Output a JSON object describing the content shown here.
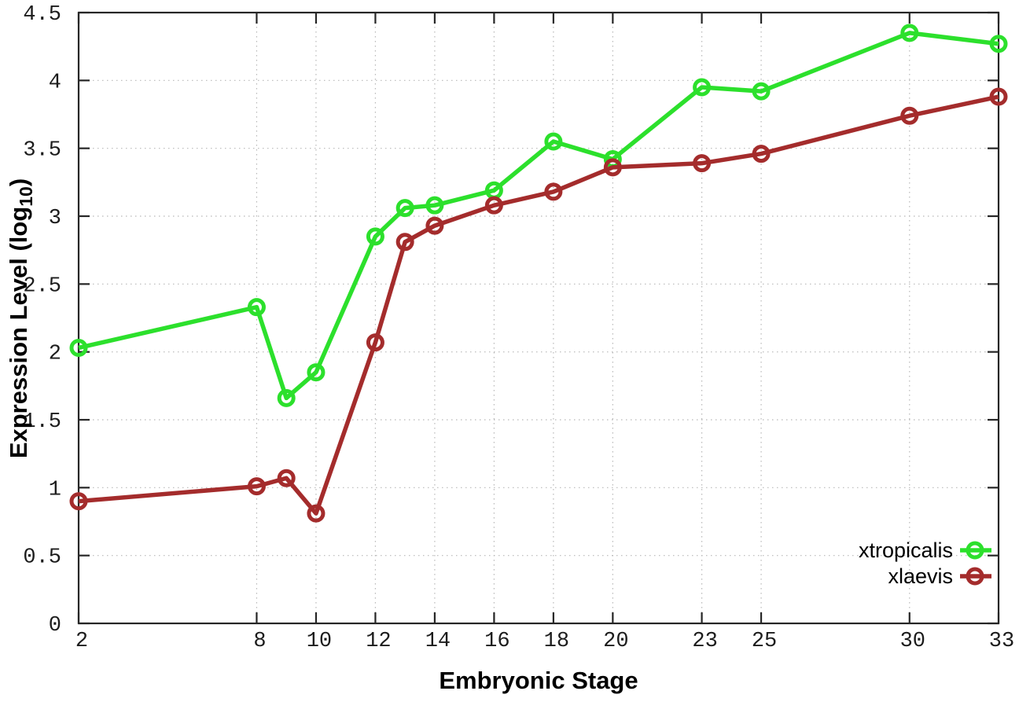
{
  "chart_data": {
    "type": "line",
    "title": "",
    "xlabel": "Embryonic Stage",
    "ylabel": "Expression Level (log10)",
    "ylabel_parts": {
      "main": "Expression Level (log",
      "sub": "10",
      "end": ")"
    },
    "xlim": [
      2,
      33
    ],
    "ylim": [
      0,
      4.5
    ],
    "x_ticks": [
      2,
      8,
      10,
      12,
      14,
      16,
      18,
      20,
      23,
      25,
      30,
      33
    ],
    "y_ticks": [
      0,
      0.5,
      1,
      1.5,
      2,
      2.5,
      3,
      3.5,
      4,
      4.5
    ],
    "grid": true,
    "legend_position": "bottom-right",
    "x": [
      2,
      8,
      9,
      10,
      12,
      13,
      14,
      16,
      18,
      20,
      23,
      25,
      30,
      33
    ],
    "series": [
      {
        "name": "xtropicalis",
        "color": "#2ce02c",
        "values": [
          2.03,
          2.33,
          1.66,
          1.85,
          2.85,
          3.06,
          3.08,
          3.19,
          3.55,
          3.42,
          3.95,
          3.92,
          4.35,
          4.27
        ]
      },
      {
        "name": "xlaevis",
        "color": "#a42c2c",
        "values": [
          0.9,
          1.01,
          1.07,
          0.81,
          2.07,
          2.81,
          2.93,
          3.08,
          3.18,
          3.36,
          3.39,
          3.46,
          3.74,
          3.88
        ]
      }
    ],
    "colors": {
      "background": "#ffffff",
      "axis": "#262626",
      "grid": "#b8b8b8",
      "text": "#000000"
    }
  }
}
